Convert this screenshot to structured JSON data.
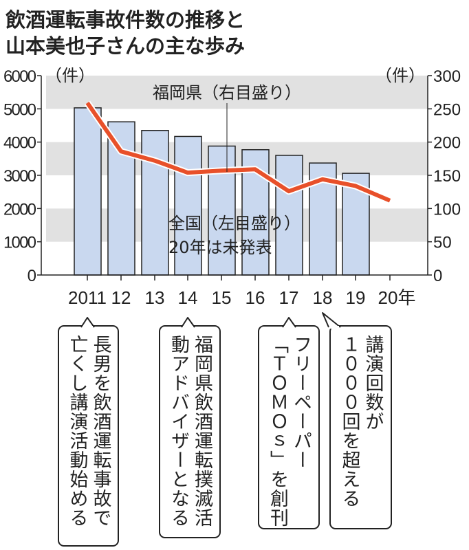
{
  "title_lines": [
    "飲酒運転事故件数の推移と",
    "山本美也子さんの主な歩み"
  ],
  "chart_data": {
    "type": "bar+line",
    "categories": [
      "2011",
      "12",
      "13",
      "14",
      "15",
      "16",
      "17",
      "18",
      "19",
      "20年"
    ],
    "series": [
      {
        "name": "全国（左目盛り）",
        "type": "bar",
        "axis": "left",
        "values": [
          5030,
          4610,
          4350,
          4170,
          3880,
          3770,
          3600,
          3370,
          3060,
          null
        ],
        "color": "#c9d8ef"
      },
      {
        "name": "福岡県（右目盛り）",
        "type": "line",
        "axis": "right",
        "values": [
          259,
          186,
          172,
          154,
          157,
          159,
          126,
          144,
          134,
          112
        ],
        "color": "#e8502a"
      }
    ],
    "left_axis": {
      "unit": "（件）",
      "ylim": [
        0,
        6000
      ],
      "ticks": [
        "0",
        "1000",
        "2000",
        "3000",
        "4000",
        "5000",
        "6000"
      ]
    },
    "right_axis": {
      "unit": "（件）",
      "ylim": [
        0,
        300
      ],
      "ticks": [
        "0",
        "50",
        "100",
        "150",
        "200",
        "250",
        "300"
      ]
    },
    "annotations": {
      "fukuoka": "福岡県（右目盛り）",
      "national": "全国（左目盛り）",
      "national_note": "20年は未発表"
    },
    "grid": "alternating horizontal bands",
    "band_color": "#e1e1e1"
  },
  "notes": [
    {
      "year": "2011",
      "lines": [
        "長男を飲酒運転事故で",
        "亡くし講演活動始める"
      ]
    },
    {
      "year": "14",
      "lines": [
        "福岡県飲酒運転撲滅活",
        "動アドバイザーとなる"
      ]
    },
    {
      "year": "17",
      "lines": [
        "フリーペーパー",
        "「ＴＯＭＯｓ」を創刊"
      ]
    },
    {
      "year": "18",
      "lines": [
        "講演回数が",
        "１０００回を超える"
      ]
    }
  ]
}
